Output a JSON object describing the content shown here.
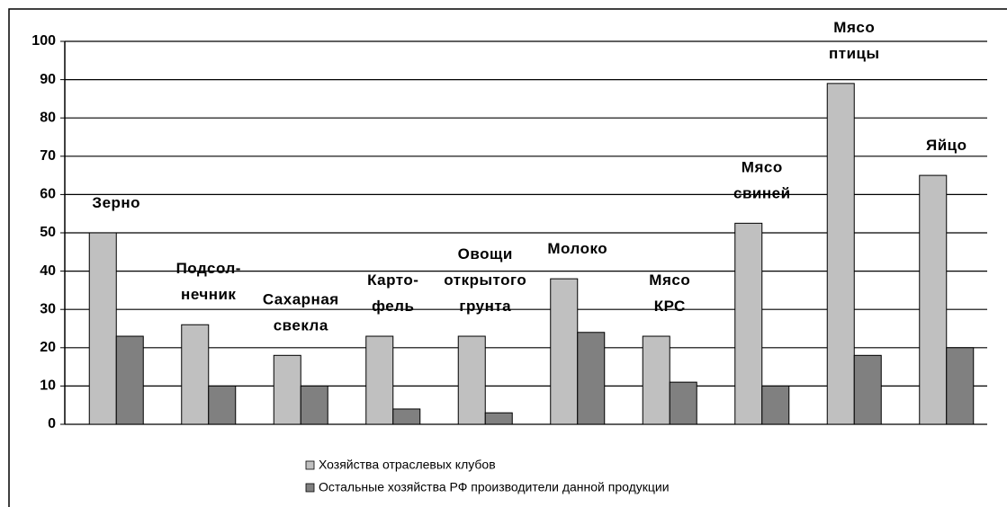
{
  "chart_data": {
    "type": "bar",
    "categories": [
      "Зерно",
      "Подсол-\nнечник",
      "Сахарная\nсвекла",
      "Карто-\nфель",
      "Овощи\nоткрытого\nгрунта",
      "Молоко",
      "Мясо\nКРС",
      "Мясо\nсвиней",
      "Мясо\nптицы",
      "Яйцо"
    ],
    "series": [
      {
        "name": "Хозяйства отраслевых клубов",
        "color": "#c0c0c0",
        "values": [
          50,
          26,
          18,
          23,
          23,
          38,
          23,
          52.5,
          89,
          65
        ]
      },
      {
        "name": "Остальные хозяйства РФ производители данной продукции",
        "color": "#808080",
        "values": [
          23,
          10,
          10,
          4,
          3,
          24,
          11,
          10,
          18,
          20
        ]
      }
    ],
    "ylim": [
      0,
      100
    ],
    "yticks": [
      0,
      10,
      20,
      30,
      40,
      50,
      60,
      70,
      80,
      90,
      100
    ],
    "grid": true,
    "legend": "bottom"
  }
}
